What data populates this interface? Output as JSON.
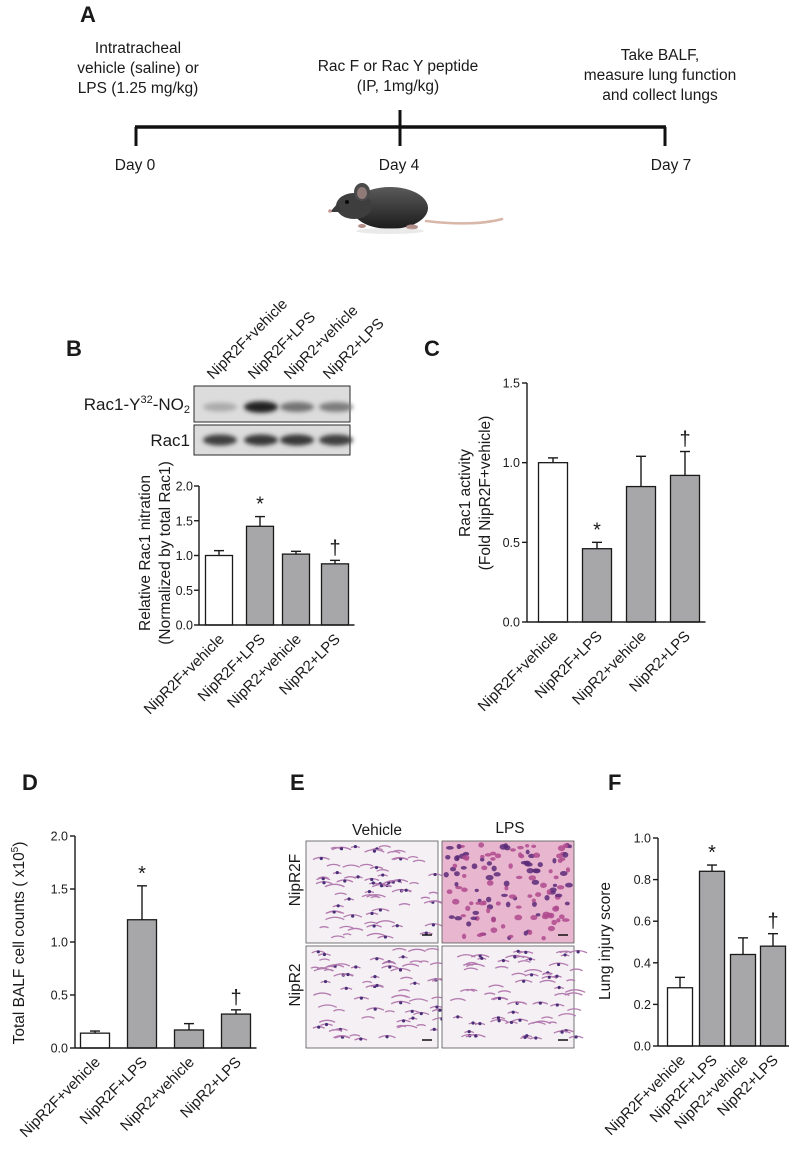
{
  "panel_labels": [
    "A",
    "B",
    "C",
    "D",
    "E",
    "F"
  ],
  "timeline": {
    "events": [
      {
        "lines": [
          "Intratracheal",
          "vehicle (saline) or",
          "LPS (1.25 mg/kg)"
        ],
        "day_label": "Day 0",
        "day": 0
      },
      {
        "lines": [
          "Rac F or Rac Y peptide",
          "(IP, 1mg/kg)"
        ],
        "day_label": "Day 4",
        "day": 4
      },
      {
        "lines": [
          "Take BALF,",
          "measure lung function",
          "and collect lungs"
        ],
        "day_label": "Day 7",
        "day": 7
      }
    ],
    "animal_icon": "mouse-icon"
  },
  "colors": {
    "open_bar": "#ffffff",
    "treated_bar": "#a7a7a9",
    "edge": "#1a1a1a"
  },
  "western_blot": {
    "lanes": [
      "NipR2F+vehicle",
      "NipR2F+LPS",
      "NipR2+vehicle",
      "NipR2+LPS"
    ],
    "rows": [
      {
        "label": "Rac1-Y",
        "superscript": "32",
        "suffix": "-NO",
        "subscript": "2",
        "intensity": [
          0.22,
          0.9,
          0.5,
          0.45
        ]
      },
      {
        "label": "Rac1",
        "intensity": [
          0.75,
          0.8,
          0.8,
          0.75
        ]
      }
    ]
  },
  "histology": {
    "columns": [
      "Vehicle",
      "LPS"
    ],
    "rows": [
      "NipR2F",
      "NipR2"
    ],
    "image_icon": "lung-tissue-micrograph"
  },
  "chart_data": [
    {
      "panel": "B",
      "type": "bar",
      "categories": [
        "NipR2F+vehicle",
        "NipR2F+LPS",
        "NipR2+vehicle",
        "NipR2+LPS"
      ],
      "values": [
        1.0,
        1.42,
        1.02,
        0.88
      ],
      "errors": [
        0.07,
        0.14,
        0.04,
        0.05
      ],
      "significance": [
        "",
        "*",
        "",
        "†"
      ],
      "ylabel_lines": [
        "Relative Rac1 nitration",
        "(Normalized by total Rac1)"
      ],
      "ylim": [
        0.0,
        2.0
      ],
      "yticks": [
        "0.0",
        "0.5",
        "1.0",
        "1.5",
        "2.0"
      ]
    },
    {
      "panel": "C",
      "type": "bar",
      "categories": [
        "NipR2F+vehicle",
        "NipR2F+LPS",
        "NipR2+vehicle",
        "NipR2+LPS"
      ],
      "values": [
        1.0,
        0.46,
        0.85,
        0.92
      ],
      "errors": [
        0.03,
        0.04,
        0.19,
        0.15
      ],
      "significance": [
        "",
        "*",
        "",
        "†"
      ],
      "ylabel_lines": [
        "Rac1  activity",
        "(Fold NipR2F+vehicle)"
      ],
      "ylim": [
        0.0,
        1.5
      ],
      "yticks": [
        "0.0",
        "0.5",
        "1.0",
        "1.5"
      ]
    },
    {
      "panel": "D",
      "type": "bar",
      "categories": [
        "NipR2F+vehicle",
        "NipR2F+LPS",
        "NipR2+vehicle",
        "NipR2+LPS"
      ],
      "values": [
        0.14,
        1.21,
        0.17,
        0.32
      ],
      "errors": [
        0.02,
        0.32,
        0.06,
        0.04
      ],
      "significance": [
        "",
        "*",
        "",
        "†"
      ],
      "ylabel_lines": [
        "Total BALF cell counts ( x10^5)"
      ],
      "ylabel_base": "Total BALF cell counts ( x10",
      "ylabel_sup": "5",
      "ylabel_end": ")",
      "ylim": [
        0.0,
        2.0
      ],
      "yticks": [
        "0.0",
        "0.5",
        "1.0",
        "1.5",
        "2.0"
      ]
    },
    {
      "panel": "F",
      "type": "bar",
      "categories": [
        "NipR2F+vehicle",
        "NipR2F+LPS",
        "NipR2+vehicle",
        "NipR2+LPS"
      ],
      "values": [
        0.28,
        0.84,
        0.44,
        0.48
      ],
      "errors": [
        0.05,
        0.03,
        0.08,
        0.06
      ],
      "significance": [
        "",
        "*",
        "",
        "†"
      ],
      "ylabel_lines": [
        "Lung injury score"
      ],
      "ylim": [
        0.0,
        1.0
      ],
      "yticks": [
        "0.0",
        "0.2",
        "0.4",
        "0.6",
        "0.8",
        "1.0"
      ]
    }
  ]
}
